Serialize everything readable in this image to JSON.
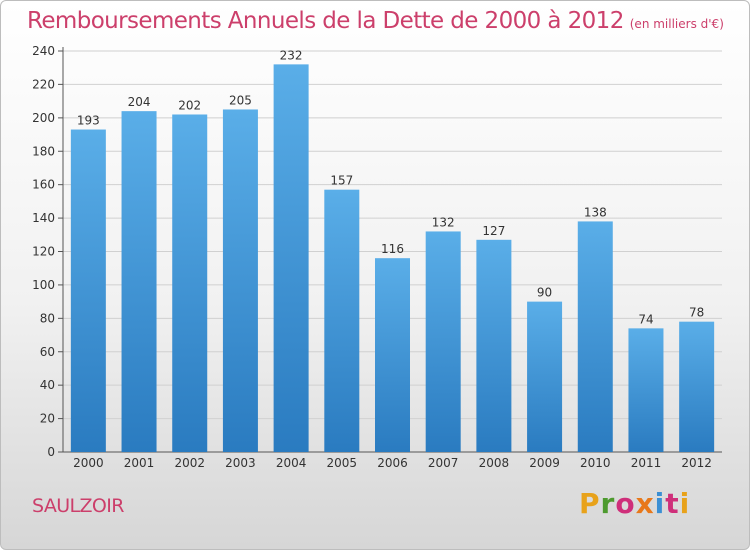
{
  "header": {
    "title": "Remboursements Annuels de la Dette de 2000 à 2012",
    "subtitle": "(en milliers d'€)"
  },
  "footer": {
    "commune": "SAULZOIR",
    "logo_text": "Proxiti"
  },
  "colors": {
    "title": "#cc3f6b",
    "bar_top": "#5aaee8",
    "bar_bottom": "#2a7bc0"
  },
  "chart_data": {
    "type": "bar",
    "title": "Remboursements Annuels de la Dette de 2000 à 2012",
    "subtitle": "(en milliers d'€)",
    "categories": [
      "2000",
      "2001",
      "2002",
      "2003",
      "2004",
      "2005",
      "2006",
      "2007",
      "2008",
      "2009",
      "2010",
      "2011",
      "2012"
    ],
    "values": [
      193,
      204,
      202,
      205,
      232,
      157,
      116,
      132,
      127,
      90,
      138,
      74,
      78
    ],
    "ylim": [
      0,
      240
    ],
    "yticks": [
      0,
      20,
      40,
      60,
      80,
      100,
      120,
      140,
      160,
      180,
      200,
      220,
      240
    ],
    "grid": true,
    "legend": "none"
  }
}
